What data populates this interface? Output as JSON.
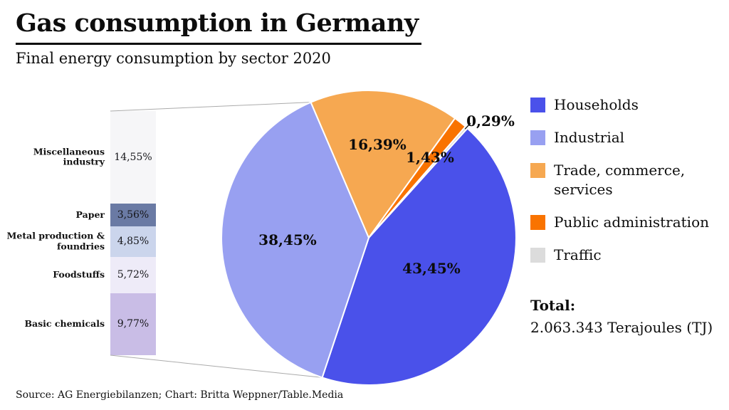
{
  "header": {
    "title": "Gas consumption in Germany",
    "subtitle": "Final energy consumption by sector 2020"
  },
  "chart_data": {
    "type": "pie",
    "title": "Gas consumption in Germany",
    "subtitle": "Final energy consumption by sector 2020",
    "unit": "percent",
    "start_angle_deg_from_north": 42,
    "direction": "clockwise",
    "slices": [
      {
        "label": "Households",
        "value": 43.45,
        "display": "43,45%",
        "color": "#4a51ea"
      },
      {
        "label": "Industrial",
        "value": 38.45,
        "display": "38,45%",
        "color": "#98a0f1"
      },
      {
        "label": "Trade, commerce, services",
        "value": 16.39,
        "display": "16,39%",
        "color": "#f6a851"
      },
      {
        "label": "Public administration",
        "value": 1.43,
        "display": "1,43%",
        "color": "#f97300"
      },
      {
        "label": "Traffic",
        "value": 0.29,
        "display": "0,29%",
        "color": "#dcdcdc"
      }
    ],
    "industrial_breakdown": {
      "type": "stacked-bar",
      "total_value": 38.45,
      "segments": [
        {
          "label": "Miscellaneous industry",
          "value": 14.55,
          "display": "14,55%",
          "color": "#f6f6f8"
        },
        {
          "label": "Paper",
          "value": 3.56,
          "display": "3,56%",
          "color": "#6a7aa4"
        },
        {
          "label": "Metal production & foundries",
          "value": 4.85,
          "display": "4,85%",
          "color": "#cbd5ec"
        },
        {
          "label": "Foodstuffs",
          "value": 5.72,
          "display": "5,72%",
          "color": "#eeebf8"
        },
        {
          "label": "Basic chemicals",
          "value": 9.77,
          "display": "9,77%",
          "color": "#c9bde6"
        }
      ]
    },
    "total": {
      "label": "Total:",
      "value": "2.063.343 Terajoules (TJ)"
    }
  },
  "legend": {
    "items": [
      {
        "label": "Households",
        "color": "#4a51ea"
      },
      {
        "label": "Industrial",
        "color": "#98a0f1"
      },
      {
        "label": "Trade, commerce, services",
        "color": "#f6a851"
      },
      {
        "label": "Public administration",
        "color": "#f97300"
      },
      {
        "label": "Traffic",
        "color": "#dcdcdc"
      }
    ]
  },
  "total": {
    "label": "Total:",
    "value": "2.063.343 Terajoules (TJ)"
  },
  "source": "Source: AG Energiebilanzen; Chart: Britta Weppner/Table.Media"
}
